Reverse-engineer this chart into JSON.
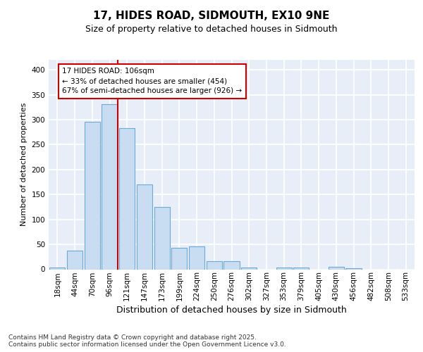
{
  "title": "17, HIDES ROAD, SIDMOUTH, EX10 9NE",
  "subtitle": "Size of property relative to detached houses in Sidmouth",
  "xlabel": "Distribution of detached houses by size in Sidmouth",
  "ylabel": "Number of detached properties",
  "categories": [
    "18sqm",
    "44sqm",
    "70sqm",
    "96sqm",
    "121sqm",
    "147sqm",
    "173sqm",
    "199sqm",
    "224sqm",
    "250sqm",
    "276sqm",
    "302sqm",
    "327sqm",
    "353sqm",
    "379sqm",
    "405sqm",
    "430sqm",
    "456sqm",
    "482sqm",
    "508sqm",
    "533sqm"
  ],
  "values": [
    3,
    38,
    296,
    331,
    283,
    170,
    125,
    43,
    46,
    16,
    16,
    4,
    0,
    3,
    3,
    0,
    5,
    2,
    0,
    0,
    0
  ],
  "bar_color": "#c8ddf2",
  "bar_edge_color": "#6aaad4",
  "vline_color": "#cc0000",
  "vline_x_index": 3,
  "annotation_line1": "17 HIDES ROAD: 106sqm",
  "annotation_line2": "← 33% of detached houses are smaller (454)",
  "annotation_line3": "67% of semi-detached houses are larger (926) →",
  "footer_text": "Contains HM Land Registry data © Crown copyright and database right 2025.\nContains public sector information licensed under the Open Government Licence v3.0.",
  "fig_bg_color": "#ffffff",
  "plot_bg_color": "#e8eef8",
  "grid_color": "#ffffff",
  "ylim": [
    0,
    420
  ],
  "yticks": [
    0,
    50,
    100,
    150,
    200,
    250,
    300,
    350,
    400
  ],
  "title_fontsize": 11,
  "subtitle_fontsize": 9,
  "xlabel_fontsize": 9,
  "ylabel_fontsize": 8,
  "tick_fontsize": 7.5,
  "annot_fontsize": 7.5,
  "footer_fontsize": 6.5
}
